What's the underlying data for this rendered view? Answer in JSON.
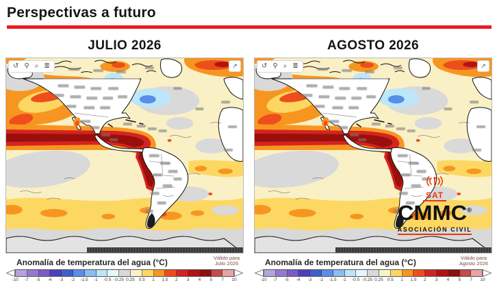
{
  "page": {
    "title": "Perspectivas a futuro",
    "accent_color": "#ec1b23"
  },
  "map_toolbar": {
    "reset_glyph": "↺",
    "location_glyph": "⚲",
    "search_glyph": "⌕",
    "layers_glyph": "≣",
    "export_glyph": "↗"
  },
  "panels": [
    {
      "heading": "JULIO 2026",
      "legend_title": "Anomalía de temperatura del agua (°C)",
      "valid_line1": "Válido para",
      "valid_line2": "Julio 2026"
    },
    {
      "heading": "AGOSTO 2026",
      "legend_title": "Anomalía de temperatura del agua (°C)",
      "valid_line1": "Válido para",
      "valid_line2": "Agosto 2026",
      "watermark": {
        "sat": "SAT",
        "org": "CMMC",
        "registered": "®",
        "org_subtitle": "ASOCIACIÓN CIVIL"
      }
    }
  ],
  "colorbar": {
    "unit": "°C",
    "ticks": [
      "-10",
      "-7",
      "-5",
      "-4",
      "-3",
      "-2",
      "-1.5",
      "-1",
      "-0.5",
      "-0.25",
      "0.25",
      "0.5",
      "1",
      "1.5",
      "2",
      "3",
      "4",
      "5",
      "7",
      "10"
    ],
    "colors": [
      "#b6a3de",
      "#9579d0",
      "#7b5cc6",
      "#4d3fbc",
      "#3f5ecb",
      "#568ee8",
      "#8abdf0",
      "#bce6fa",
      "#e6f6fd",
      "#d9d9d9",
      "#f9f1ca",
      "#fcd863",
      "#f79521",
      "#ee4d1c",
      "#d42420",
      "#b11414",
      "#8f1010",
      "#bf4f48",
      "#e9a3a2"
    ]
  }
}
